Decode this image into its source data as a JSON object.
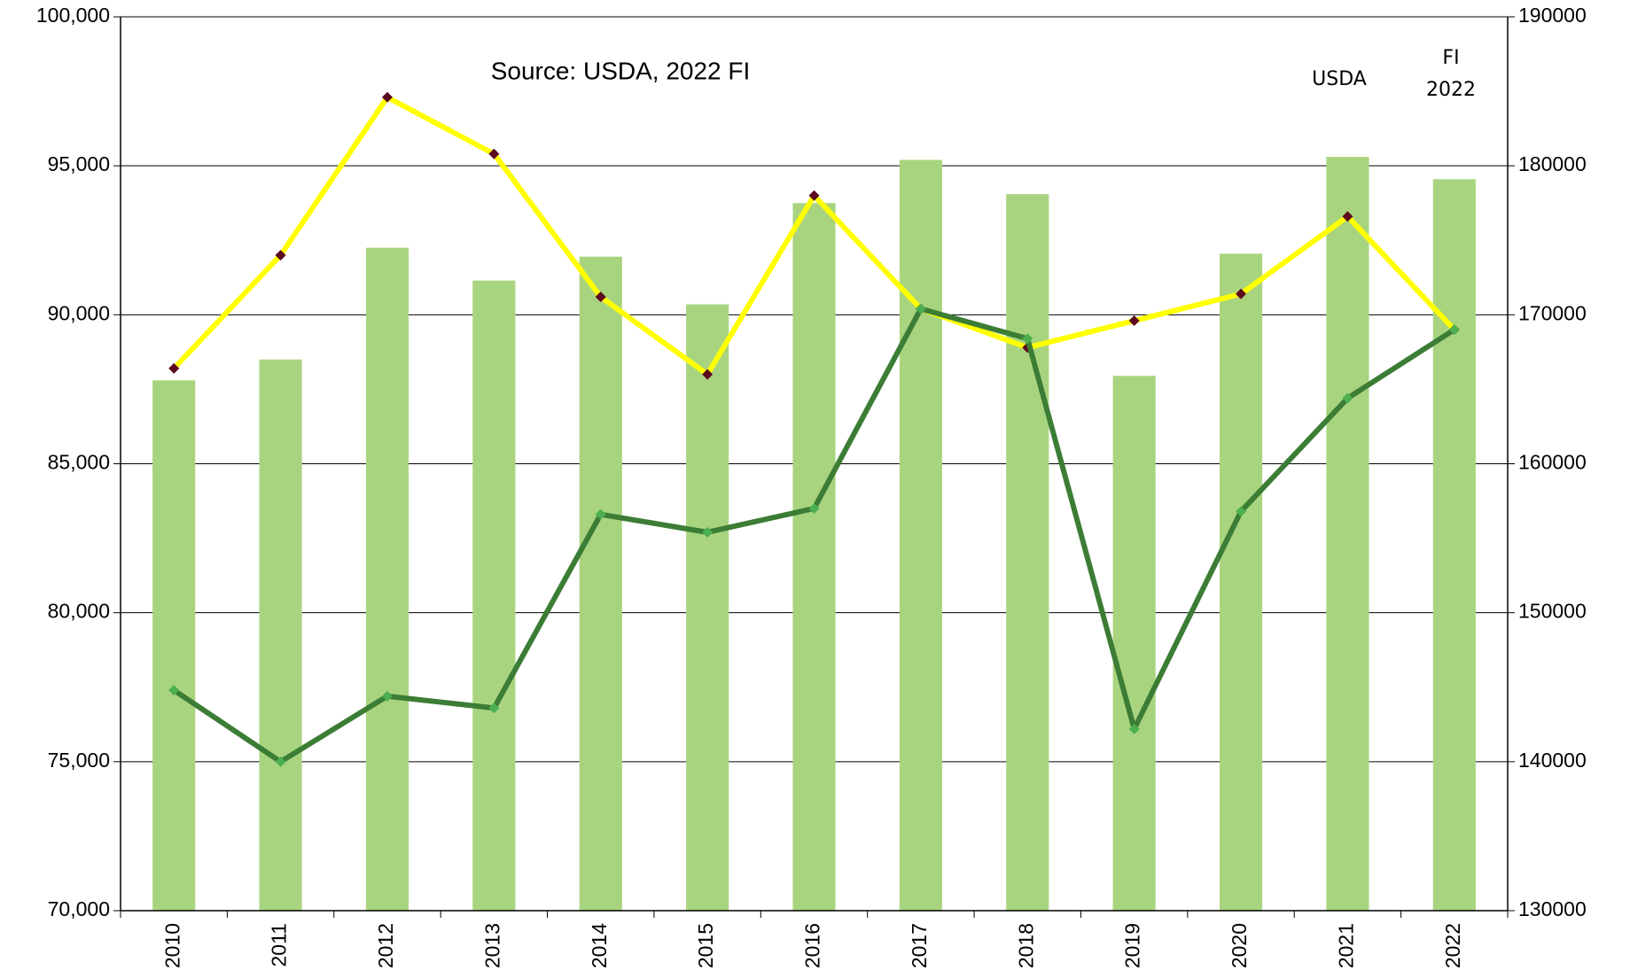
{
  "chart_data": {
    "type": "bar-line",
    "annotations": [
      {
        "text": "Source: USDA, 2022 FI"
      },
      {
        "text": "USDA"
      },
      {
        "lines": [
          "FI",
          "2022"
        ]
      }
    ],
    "categories": [
      "2010",
      "2011",
      "2012",
      "2013",
      "2014",
      "2015",
      "2016",
      "2017",
      "2018",
      "2019",
      "2020",
      "2021",
      "2022"
    ],
    "series": [
      {
        "type": "bar",
        "axis": "y2",
        "color": "#a9d47f",
        "values": [
          165600,
          167000,
          174500,
          172300,
          173900,
          170700,
          177500,
          180400,
          178100,
          165900,
          174100,
          180600,
          179100
        ]
      },
      {
        "type": "line",
        "color": "#ffff00",
        "marker_color": "#5c0a1e",
        "values": [
          88200,
          92000,
          97300,
          95400,
          90600,
          88000,
          94000,
          90200,
          88900,
          89800,
          90700,
          93300,
          89500
        ]
      },
      {
        "type": "line",
        "color": "#3c7d35",
        "marker_color": "#4caf50",
        "values": [
          77400,
          75000,
          77200,
          76800,
          83300,
          82700,
          83500,
          90200,
          89200,
          76100,
          83400,
          87200,
          89500
        ]
      }
    ],
    "ylim": [
      70000,
      100000
    ],
    "yticks": [
      {
        "value": 70000,
        "label": "70,000"
      },
      {
        "value": 75000,
        "label": "75,000"
      },
      {
        "value": 80000,
        "label": "80,000"
      },
      {
        "value": 85000,
        "label": "85,000"
      },
      {
        "value": 90000,
        "label": "90,000"
      },
      {
        "value": 95000,
        "label": "95,000"
      },
      {
        "value": 100000,
        "label": "100,000"
      }
    ],
    "y2lim": [
      130000,
      190000
    ],
    "y2ticks": [
      130000,
      140000,
      150000,
      160000,
      170000,
      180000,
      190000
    ],
    "grid": true
  }
}
